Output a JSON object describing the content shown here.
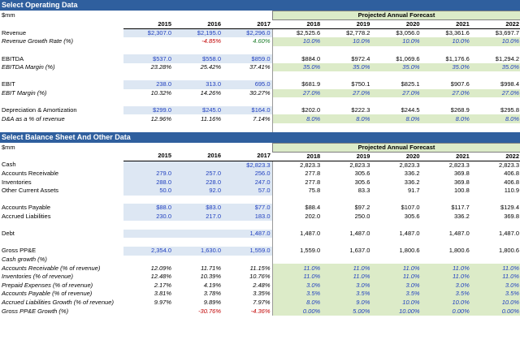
{
  "sections": [
    {
      "title": "Select Operating Data",
      "unit": "$mm",
      "forecast_label": "Projected Annual Forecast",
      "years": [
        "2015",
        "2016",
        "2017",
        "2018",
        "2019",
        "2020",
        "2021",
        "2022"
      ],
      "rows": [
        {
          "label": "Revenue",
          "italic": false,
          "vals": [
            "$2,307.0",
            "$2,195.0",
            "$2,296.0",
            "$2,525.6",
            "$2,778.2",
            "$3,056.0",
            "$3,361.6",
            "$3,697.7"
          ],
          "hist": "blue",
          "proj": "plain"
        },
        {
          "label": "Revenue Growth Rate (%)",
          "italic": true,
          "vals": [
            "",
            "-4.85%",
            "4.60%",
            "10.0%",
            "10.0%",
            "10.0%",
            "10.0%",
            "10.0%"
          ],
          "hist": "signed",
          "proj": "green"
        },
        {
          "label": "",
          "spacer": true
        },
        {
          "label": "EBITDA",
          "italic": false,
          "vals": [
            "$537.0",
            "$558.0",
            "$859.0",
            "$884.0",
            "$972.4",
            "$1,069.6",
            "$1,176.6",
            "$1,294.2"
          ],
          "hist": "blue",
          "proj": "plain"
        },
        {
          "label": "EBITDA Margin (%)",
          "italic": true,
          "vals": [
            "23.28%",
            "25.42%",
            "37.41%",
            "35.0%",
            "35.0%",
            "35.0%",
            "35.0%",
            "35.0%"
          ],
          "hist": "plain",
          "proj": "green"
        },
        {
          "label": "",
          "spacer": true
        },
        {
          "label": "EBIT",
          "italic": false,
          "vals": [
            "238.0",
            "313.0",
            "695.0",
            "$681.9",
            "$750.1",
            "$825.1",
            "$907.6",
            "$998.4"
          ],
          "hist": "blue",
          "proj": "plain"
        },
        {
          "label": "EBIT Margin (%)",
          "italic": true,
          "vals": [
            "10.32%",
            "14.26%",
            "30.27%",
            "27.0%",
            "27.0%",
            "27.0%",
            "27.0%",
            "27.0%"
          ],
          "hist": "plain",
          "proj": "green"
        },
        {
          "label": "",
          "spacer": true
        },
        {
          "label": "Depreciation & Amortization",
          "italic": false,
          "vals": [
            "$299.0",
            "$245.0",
            "$164.0",
            "$202.0",
            "$222.3",
            "$244.5",
            "$268.9",
            "$295.8"
          ],
          "hist": "blue",
          "proj": "plain"
        },
        {
          "label": "D&A as a % of revenue",
          "italic": true,
          "vals": [
            "12.96%",
            "11.16%",
            "7.14%",
            "8.0%",
            "8.0%",
            "8.0%",
            "8.0%",
            "8.0%"
          ],
          "hist": "plain",
          "proj": "green"
        },
        {
          "label": "",
          "spacer": true
        }
      ]
    },
    {
      "title": "Select Balance Sheet And Other Data",
      "unit": "$mm",
      "forecast_label": "Projected Annual Forecast",
      "years": [
        "2015",
        "2016",
        "2017",
        "2018",
        "2019",
        "2020",
        "2021",
        "2022"
      ],
      "rows": [
        {
          "label": "Cash",
          "italic": false,
          "vals": [
            "",
            "",
            "$2,823.3",
            "2,823.3",
            "2,823.3",
            "2,823.3",
            "2,823.3",
            "2,823.3"
          ],
          "hist": "blue",
          "proj": "plain"
        },
        {
          "label": "Accounts Receivable",
          "italic": false,
          "vals": [
            "279.0",
            "257.0",
            "256.0",
            "277.8",
            "305.6",
            "336.2",
            "369.8",
            "406.8"
          ],
          "hist": "blue",
          "proj": "plain"
        },
        {
          "label": "Inventories",
          "italic": false,
          "vals": [
            "288.0",
            "228.0",
            "247.0",
            "277.8",
            "305.6",
            "336.2",
            "369.8",
            "406.8"
          ],
          "hist": "blue",
          "proj": "plain"
        },
        {
          "label": "Other Current Assets",
          "italic": false,
          "vals": [
            "50.0",
            "92.0",
            "57.0",
            "75.8",
            "83.3",
            "91.7",
            "100.8",
            "110.9"
          ],
          "hist": "blue",
          "proj": "plain"
        },
        {
          "label": "",
          "spacer": true
        },
        {
          "label": "Accounts Payable",
          "italic": false,
          "vals": [
            "$88.0",
            "$83.0",
            "$77.0",
            "$88.4",
            "$97.2",
            "$107.0",
            "$117.7",
            "$129.4"
          ],
          "hist": "blue",
          "proj": "plain"
        },
        {
          "label": "Accrued Liabilities",
          "italic": false,
          "vals": [
            "230.0",
            "217.0",
            "183.0",
            "202.0",
            "250.0",
            "305.6",
            "336.2",
            "369.8"
          ],
          "hist": "blue",
          "proj": "plain"
        },
        {
          "label": "",
          "spacer": true
        },
        {
          "label": "Debt",
          "italic": false,
          "vals": [
            "",
            "",
            "1,487.0",
            "1,487.0",
            "1,487.0",
            "1,487.0",
            "1,487.0",
            "1,487.0"
          ],
          "hist": "blue",
          "proj": "plain"
        },
        {
          "label": "",
          "spacer": true
        },
        {
          "label": "Gross PP&E",
          "italic": false,
          "vals": [
            "2,354.0",
            "1,630.0",
            "1,559.0",
            "1,559.0",
            "1,637.0",
            "1,800.6",
            "1,800.6",
            "1,800.6"
          ],
          "hist": "blue",
          "proj": "plain"
        },
        {
          "label": "Cash growth (%)",
          "italic": true,
          "vals": [
            "",
            "",
            "",
            "",
            "",
            "",
            "",
            ""
          ],
          "hist": "plain",
          "proj": "plain"
        },
        {
          "label": "Accounts Receivable (% of revenue)",
          "italic": true,
          "vals": [
            "12.09%",
            "11.71%",
            "11.15%",
            "11.0%",
            "11.0%",
            "11.0%",
            "11.0%",
            "11.0%"
          ],
          "hist": "plain",
          "proj": "green"
        },
        {
          "label": "Inventories (% of revenue)",
          "italic": true,
          "vals": [
            "12.48%",
            "10.39%",
            "10.76%",
            "11.0%",
            "11.0%",
            "11.0%",
            "11.0%",
            "11.0%"
          ],
          "hist": "plain",
          "proj": "green"
        },
        {
          "label": "Prepaid Expenses (% of revenue)",
          "italic": true,
          "vals": [
            "2.17%",
            "4.19%",
            "2.48%",
            "3.0%",
            "3.0%",
            "3.0%",
            "3.0%",
            "3.0%"
          ],
          "hist": "plain",
          "proj": "green"
        },
        {
          "label": "Accounts Payable (% of revenue)",
          "italic": true,
          "vals": [
            "3.81%",
            "3.78%",
            "3.35%",
            "3.5%",
            "3.5%",
            "3.5%",
            "3.5%",
            "3.5%"
          ],
          "hist": "plain",
          "proj": "green"
        },
        {
          "label": "Accrued Liabilities Growth (% of revenue)",
          "italic": true,
          "vals": [
            "9.97%",
            "9.89%",
            "7.97%",
            "8.0%",
            "9.0%",
            "10.0%",
            "10.0%",
            "10.0%"
          ],
          "hist": "plain",
          "proj": "green"
        },
        {
          "label": "Gross PP&E Growth (%)",
          "italic": true,
          "vals": [
            "",
            "-30.76%",
            "-4.36%",
            "0.00%",
            "5.00%",
            "10.00%",
            "0.00%",
            "0.00%"
          ],
          "hist": "signed",
          "proj": "greensigned"
        }
      ]
    }
  ]
}
